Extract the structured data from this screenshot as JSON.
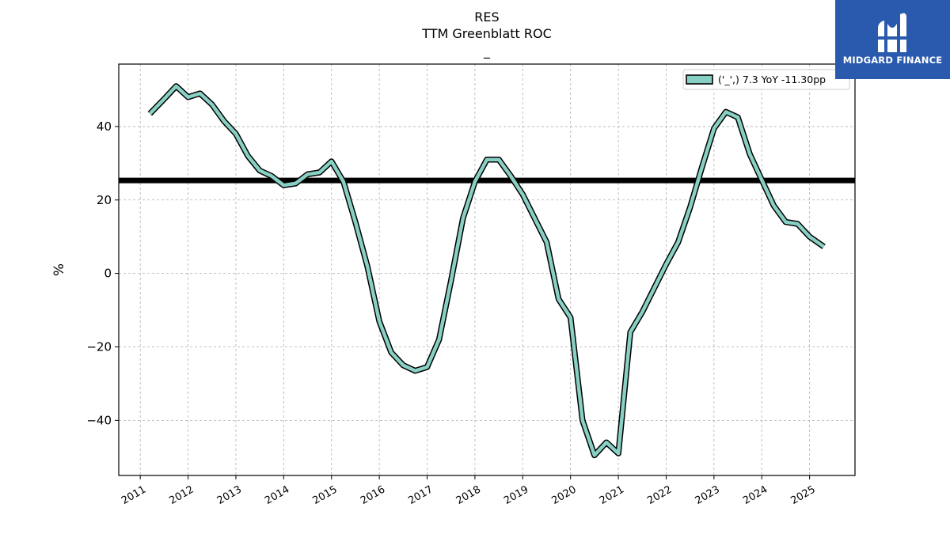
{
  "title": {
    "line1": "RES",
    "line2": "TTM Greenblatt ROC",
    "line3": "_"
  },
  "logo": {
    "text": "MIDGARD FINANCE",
    "icon": "midgard-logo-icon",
    "bg_color": "#2a5aad"
  },
  "chart_data": {
    "type": "line",
    "ylabel": "%",
    "xlim": [
      2010.55,
      2025.95
    ],
    "ylim": [
      -55,
      57
    ],
    "y_ticks": [
      -40,
      -20,
      0,
      20,
      40
    ],
    "x_ticks": [
      "2011",
      "2012",
      "2013",
      "2014",
      "2015",
      "2016",
      "2017",
      "2018",
      "2019",
      "2020",
      "2021",
      "2022",
      "2023",
      "2024",
      "2025"
    ],
    "grid": true,
    "legend_position": "top-right",
    "series": [
      {
        "name": "('_',) 7.3 YoY -11.30pp",
        "color": "#88d0c4",
        "x": [
          2011.2,
          2011.5,
          2011.75,
          2012.0,
          2012.25,
          2012.5,
          2012.75,
          2013.0,
          2013.25,
          2013.5,
          2013.75,
          2014.0,
          2014.25,
          2014.5,
          2014.75,
          2015.0,
          2015.25,
          2015.5,
          2015.75,
          2016.0,
          2016.25,
          2016.5,
          2016.75,
          2017.0,
          2017.25,
          2017.5,
          2017.75,
          2018.0,
          2018.25,
          2018.5,
          2018.75,
          2019.0,
          2019.25,
          2019.5,
          2019.75,
          2020.0,
          2020.25,
          2020.5,
          2020.75,
          2021.0,
          2021.25,
          2021.5,
          2021.75,
          2022.0,
          2022.25,
          2022.5,
          2022.75,
          2023.0,
          2023.25,
          2023.5,
          2023.75,
          2024.0,
          2024.25,
          2024.5,
          2024.75,
          2025.0,
          2025.3
        ],
        "y": [
          43.5,
          47.5,
          51.0,
          48.0,
          49.0,
          46.0,
          41.5,
          38.0,
          32.0,
          28.0,
          26.5,
          24.0,
          24.5,
          27.0,
          27.5,
          30.5,
          25.0,
          14.0,
          2.0,
          -13.0,
          -21.5,
          -25.0,
          -26.5,
          -25.5,
          -18.0,
          -2.0,
          15.0,
          25.0,
          31.0,
          31.0,
          26.5,
          21.5,
          15.0,
          8.5,
          -7.0,
          -12.0,
          -40.0,
          -49.5,
          -46.0,
          -49.0,
          -16.0,
          -10.5,
          -4.0,
          2.5,
          8.5,
          18.0,
          29.0,
          39.5,
          44.0,
          42.5,
          32.5,
          25.5,
          18.5,
          14.0,
          13.5,
          10.0,
          7.3
        ]
      }
    ],
    "reference_line": {
      "y": 25.3,
      "color": "#000000"
    }
  }
}
